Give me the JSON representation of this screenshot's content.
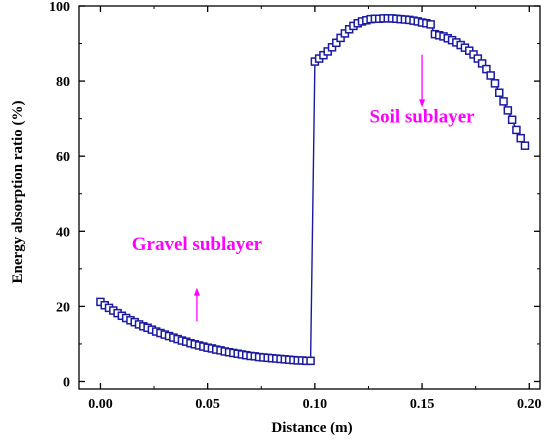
{
  "chart_data": {
    "type": "scatter",
    "xlabel": "Distance (m)",
    "ylabel": "Energy absorption ratio (%)",
    "xlim": [
      -0.01,
      0.205
    ],
    "ylim": [
      -2,
      100
    ],
    "x_ticks": [
      "0.00",
      "0.05",
      "0.10",
      "0.15",
      "0.20"
    ],
    "y_ticks": [
      "0",
      "20",
      "40",
      "60",
      "80",
      "100"
    ],
    "grid": false,
    "legend": "none",
    "series": [
      {
        "color": "#1a1aa0",
        "marker": "open-square",
        "line": true,
        "x": [
          0.0,
          0.002,
          0.004,
          0.006,
          0.008,
          0.01,
          0.012,
          0.014,
          0.016,
          0.018,
          0.02,
          0.022,
          0.024,
          0.026,
          0.028,
          0.03,
          0.032,
          0.034,
          0.036,
          0.038,
          0.04,
          0.042,
          0.044,
          0.046,
          0.048,
          0.05,
          0.052,
          0.054,
          0.056,
          0.058,
          0.06,
          0.062,
          0.064,
          0.066,
          0.068,
          0.07,
          0.072,
          0.074,
          0.076,
          0.078,
          0.08,
          0.082,
          0.084,
          0.086,
          0.088,
          0.09,
          0.092,
          0.094,
          0.096,
          0.098,
          0.1,
          0.102,
          0.104,
          0.106,
          0.108,
          0.11,
          0.112,
          0.114,
          0.116,
          0.118,
          0.12,
          0.122,
          0.124,
          0.126,
          0.128,
          0.13,
          0.132,
          0.134,
          0.136,
          0.138,
          0.14,
          0.142,
          0.144,
          0.146,
          0.148,
          0.15,
          0.152,
          0.154,
          0.156,
          0.158,
          0.16,
          0.162,
          0.164,
          0.166,
          0.168,
          0.17,
          0.172,
          0.174,
          0.176,
          0.178,
          0.18,
          0.182,
          0.184,
          0.186,
          0.188,
          0.19,
          0.192,
          0.194,
          0.196,
          0.198
        ],
        "y": [
          21.2,
          20.3,
          19.6,
          18.9,
          18.2,
          17.5,
          16.9,
          16.3,
          15.8,
          15.2,
          14.7,
          14.3,
          13.8,
          13.3,
          12.9,
          12.5,
          12.1,
          11.7,
          11.3,
          10.9,
          10.6,
          10.2,
          9.9,
          9.6,
          9.3,
          9.0,
          8.8,
          8.5,
          8.3,
          8.0,
          7.8,
          7.6,
          7.4,
          7.2,
          7.0,
          6.8,
          6.7,
          6.5,
          6.4,
          6.3,
          6.2,
          6.1,
          6.0,
          5.9,
          5.8,
          5.7,
          5.6,
          5.6,
          5.5,
          5.5,
          85.2,
          86.0,
          86.9,
          87.9,
          89.0,
          90.2,
          91.5,
          92.7,
          93.8,
          94.7,
          95.4,
          95.9,
          96.2,
          96.5,
          96.6,
          96.6,
          96.7,
          96.7,
          96.7,
          96.6,
          96.5,
          96.4,
          96.3,
          96.1,
          95.9,
          95.6,
          95.4,
          95.1,
          92.5,
          92.2,
          91.9,
          91.4,
          90.9,
          90.3,
          89.6,
          88.9,
          88.1,
          87.1,
          86.0,
          84.7,
          83.2,
          81.5,
          79.4,
          76.9,
          74.6,
          72.2,
          69.7,
          67.0,
          64.8,
          62.8
        ]
      }
    ],
    "annotations": [
      {
        "text": "Gravel sublayer",
        "color": "#ff00ff",
        "arrow": "up",
        "x": 0.045,
        "y": 25
      },
      {
        "text": "Soil sublayer",
        "color": "#ff00ff",
        "arrow": "down",
        "x": 0.15,
        "y": 69
      }
    ]
  }
}
